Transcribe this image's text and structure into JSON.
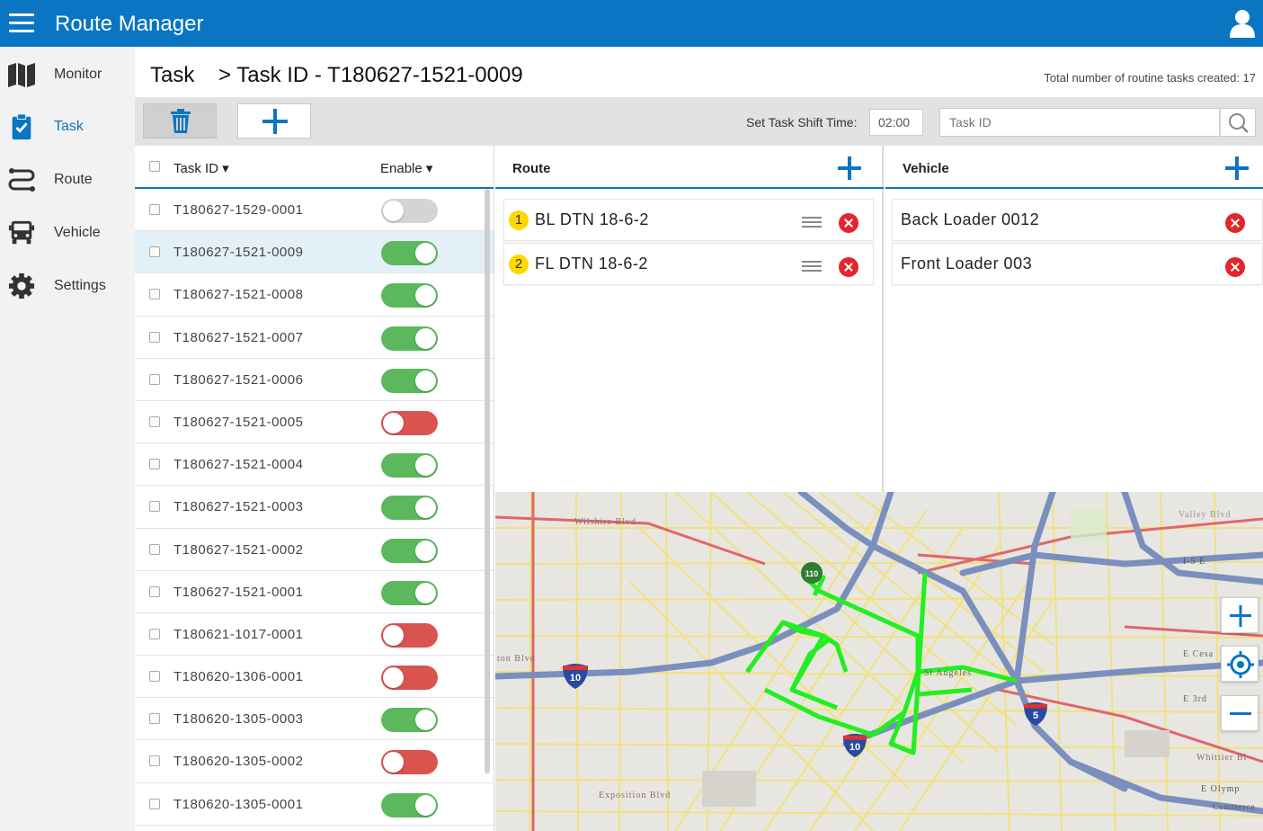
{
  "app": {
    "title": "Route Manager"
  },
  "sidebar": {
    "items": [
      {
        "label": "Monitor",
        "icon": "map-icon"
      },
      {
        "label": "Task",
        "icon": "clipboard-check-icon",
        "active": true
      },
      {
        "label": "Route",
        "icon": "route-icon"
      },
      {
        "label": "Vehicle",
        "icon": "truck-icon"
      },
      {
        "label": "Settings",
        "icon": "gear-icon"
      }
    ]
  },
  "header": {
    "breadcrumb_root": "Task",
    "breadcrumb_current": "> Task ID - T180627-1521-0009",
    "total_tasks": "Total number of routine tasks created: 17"
  },
  "toolbar": {
    "shift_label": "Set Task Shift Time:",
    "shift_value": "02:00",
    "search_placeholder": "Task ID"
  },
  "task_table": {
    "col_task_id": "Task ID",
    "col_enable": "Enable",
    "rows": [
      {
        "id": "T180627-1529-0001",
        "state": "neutral"
      },
      {
        "id": "T180627-1521-0009",
        "state": "on",
        "selected": true
      },
      {
        "id": "T180627-1521-0008",
        "state": "on"
      },
      {
        "id": "T180627-1521-0007",
        "state": "on"
      },
      {
        "id": "T180627-1521-0006",
        "state": "on"
      },
      {
        "id": "T180627-1521-0005",
        "state": "off"
      },
      {
        "id": "T180627-1521-0004",
        "state": "on"
      },
      {
        "id": "T180627-1521-0003",
        "state": "on"
      },
      {
        "id": "T180627-1521-0002",
        "state": "on"
      },
      {
        "id": "T180627-1521-0001",
        "state": "on"
      },
      {
        "id": "T180621-1017-0001",
        "state": "off"
      },
      {
        "id": "T180620-1306-0001",
        "state": "off"
      },
      {
        "id": "T180620-1305-0003",
        "state": "on"
      },
      {
        "id": "T180620-1305-0002",
        "state": "off"
      },
      {
        "id": "T180620-1305-0001",
        "state": "on"
      }
    ]
  },
  "route_panel": {
    "title": "Route",
    "items": [
      {
        "order": "1",
        "name": "BL DTN 18-6-2"
      },
      {
        "order": "2",
        "name": "FL DTN 18-6-2"
      }
    ]
  },
  "vehicle_panel": {
    "title": "Vehicle",
    "items": [
      {
        "name": "Back Loader 0012"
      },
      {
        "name": "Front Loader 003"
      }
    ]
  },
  "map": {
    "labels": {
      "wilshire": "Wilshire Blvd",
      "ton_blvd": "ton Blvd",
      "st_angeles": "St Angeles",
      "exposition": "Exposition Blvd",
      "e_cesar": "E Cesa",
      "e_3rd": "E 3rd",
      "whittier": "Whittier Bl",
      "e_olympic": "E Olymp",
      "commerce": "Commerce",
      "valley": "Valley Blvd",
      "i5e": "I-5 E"
    },
    "shields": {
      "i10a": "10",
      "i10b": "10",
      "i5": "5",
      "ca110": "110"
    }
  },
  "colors": {
    "brand": "#0a75c2",
    "toggle_on": "#5cb85c",
    "toggle_off": "#d9534f",
    "remove": "#e4252b",
    "route_line": "#22ee22"
  }
}
